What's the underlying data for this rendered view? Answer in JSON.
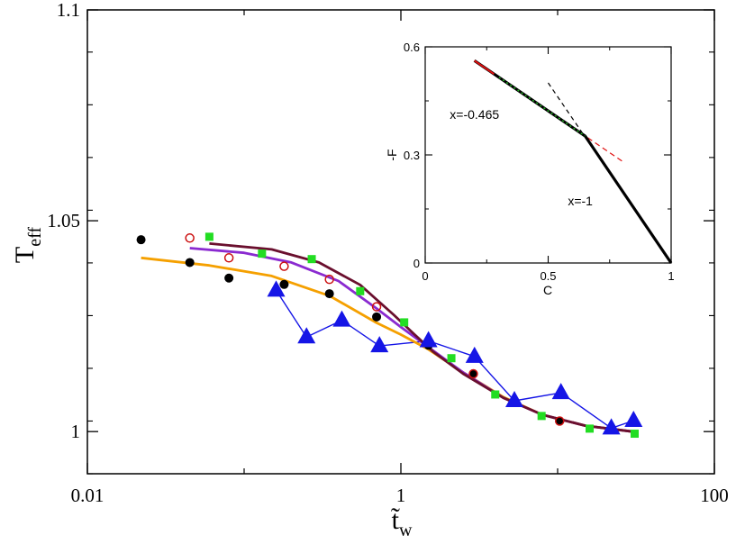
{
  "chart_data": [
    {
      "type": "scatter",
      "xscale": "log",
      "xlim": [
        0.01,
        100
      ],
      "ylim": [
        0.99,
        1.1
      ],
      "xlabel": "t̃",
      "xlabel_sub": "w",
      "ylabel": "T",
      "ylabel_sub": "eff",
      "x_ticks": [
        {
          "value": 0.01,
          "label": "0.01"
        },
        {
          "value": 1,
          "label": "1"
        },
        {
          "value": 100,
          "label": "100"
        }
      ],
      "y_ticks": [
        {
          "value": 1.0,
          "label": "1"
        },
        {
          "value": 1.05,
          "label": "1.05"
        },
        {
          "value": 1.1,
          "label": "1.1"
        }
      ],
      "series": [
        {
          "marker": "filled-circle",
          "color": "#000000",
          "x": [
            0.022,
            0.045,
            0.08,
            0.18,
            0.35,
            0.7,
            1.5,
            2.9,
            10.3
          ],
          "y": [
            1.0455,
            1.0401,
            1.0364,
            1.0349,
            1.0327,
            1.0272,
            1.0205,
            1.0137,
            1.0025
          ]
        },
        {
          "marker": "open-circle",
          "color": "#cc1111",
          "x": [
            0.045,
            0.08,
            0.18,
            0.35,
            0.7,
            2.9,
            10.3
          ],
          "y": [
            1.0459,
            1.0412,
            1.0392,
            1.0361,
            1.0296,
            1.0137,
            1.0025
          ]
        },
        {
          "marker": "filled-square",
          "color": "#22dd22",
          "x": [
            0.06,
            0.13,
            0.27,
            0.55,
            1.05,
            2.1,
            4.0,
            7.9,
            16.0,
            31.0
          ],
          "y": [
            1.0462,
            1.0422,
            1.0409,
            1.0333,
            1.0259,
            1.0174,
            1.0088,
            1.0037,
            1.0007,
            0.9995
          ]
        },
        {
          "marker": "filled-triangle",
          "color": "#1515e6",
          "line": true,
          "x": [
            0.16,
            0.25,
            0.42,
            0.73,
            1.5,
            2.95,
            5.3,
            10.5,
            22.0,
            30.5
          ],
          "y": [
            1.0335,
            1.0224,
            1.0264,
            1.0203,
            1.0215,
            1.0178,
            1.0073,
            1.0092,
            1.0008,
            1.0026
          ]
        },
        {
          "marker": "none",
          "color": "#f5a000",
          "line": true,
          "x": [
            0.022,
            0.06,
            0.15,
            0.35,
            0.7,
            1.0,
            1.5,
            2.5,
            4.5,
            8.0,
            15.0,
            30.0
          ],
          "y": [
            1.0412,
            1.0394,
            1.0369,
            1.0322,
            1.0258,
            1.023,
            1.0195,
            1.014,
            1.0082,
            1.004,
            1.0014,
            1.0
          ]
        },
        {
          "marker": "none",
          "color": "#8a2ad0",
          "line": true,
          "x": [
            0.045,
            0.1,
            0.2,
            0.4,
            0.7,
            1.0,
            1.5,
            2.5,
            4.5,
            8.0,
            15.0,
            30.0
          ],
          "y": [
            1.0435,
            1.0424,
            1.0401,
            1.0357,
            1.0292,
            1.0248,
            1.02,
            1.014,
            1.008,
            1.004,
            1.0014,
            1.0
          ]
        },
        {
          "marker": "none",
          "color": "#6a0f2e",
          "line": true,
          "x": [
            0.06,
            0.15,
            0.3,
            0.55,
            0.9,
            1.2,
            1.6,
            2.5,
            4.5,
            8.0,
            15.0,
            30.0
          ],
          "y": [
            1.0446,
            1.0432,
            1.0401,
            1.0348,
            1.0277,
            1.0233,
            1.019,
            1.0137,
            1.008,
            1.004,
            1.0014,
            1.0
          ]
        }
      ]
    },
    {
      "type": "line",
      "xlim": [
        0,
        1
      ],
      "ylim": [
        0,
        0.6
      ],
      "xlabel": "C",
      "ylabel": "-F",
      "x_ticks": [
        {
          "value": 0,
          "label": "0"
        },
        {
          "value": 0.5,
          "label": "0.5"
        },
        {
          "value": 1,
          "label": "1"
        }
      ],
      "y_ticks": [
        {
          "value": 0,
          "label": "0"
        },
        {
          "value": 0.3,
          "label": "0.3"
        },
        {
          "value": 0.6,
          "label": "0.6"
        }
      ],
      "annotations": [
        {
          "text": "x=-0.465",
          "x": 0.1,
          "y": 0.4
        },
        {
          "text": "x=-1",
          "x": 0.58,
          "y": 0.16
        }
      ],
      "series": [
        {
          "style": "solid-thick",
          "color": "#000000",
          "x": [
            0.2,
            0.65,
            1.0
          ],
          "y": [
            0.5618,
            0.3526,
            0.0
          ]
        },
        {
          "style": "solid-red",
          "color": "#e01010",
          "x": [
            0.2,
            0.28
          ],
          "y": [
            0.5618,
            0.5246
          ]
        },
        {
          "style": "dotted-green",
          "color": "#22aa22",
          "x": [
            0.3,
            0.65
          ],
          "y": [
            0.5153,
            0.3526
          ]
        },
        {
          "style": "dashed-black",
          "color": "#000000",
          "x": [
            0.5,
            1.0
          ],
          "y": [
            0.5,
            0.0
          ]
        },
        {
          "style": "dashed-red",
          "color": "#e01010",
          "x": [
            0.6,
            0.8
          ],
          "y": [
            0.376,
            0.283
          ]
        }
      ]
    }
  ]
}
